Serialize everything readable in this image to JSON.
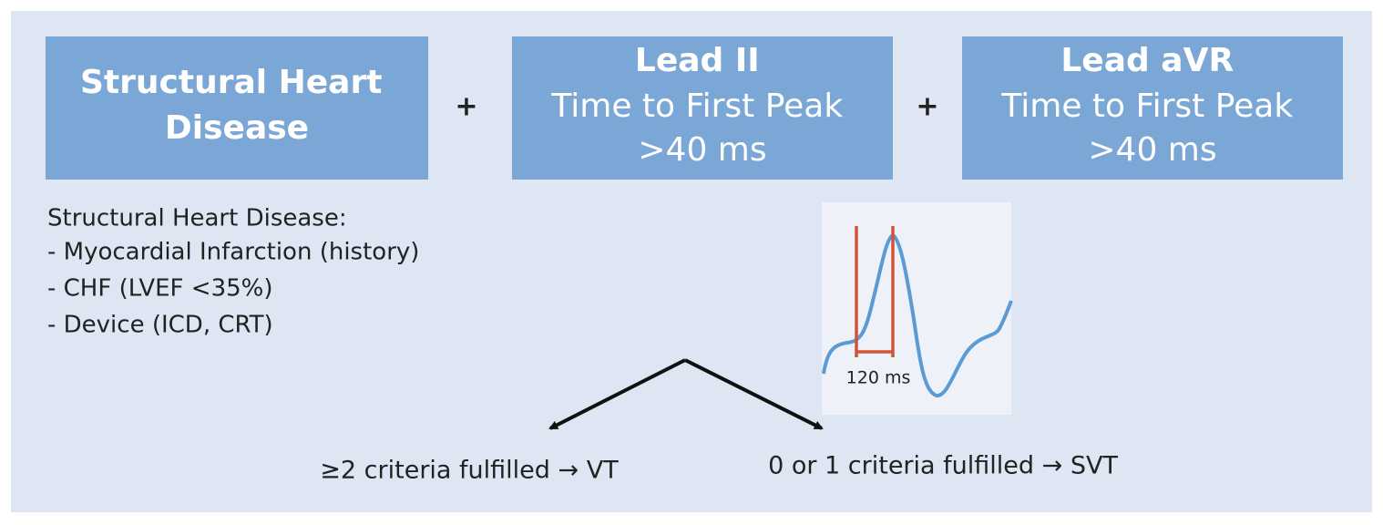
{
  "boxes": [
    {
      "lines": [
        "Structural Heart",
        "Disease"
      ]
    },
    {
      "lines": [
        "Lead II",
        "Time to First Peak",
        ">40 ms"
      ]
    },
    {
      "lines": [
        "Lead aVR",
        "Time to First Peak",
        ">40 ms"
      ]
    }
  ],
  "operators": [
    "+",
    "+"
  ],
  "definition": {
    "title": "Structural Heart Disease:",
    "items": [
      "- Myocardial Infarction (history)",
      "- CHF (LVEF <35%)",
      "- Device (ICD, CRT)"
    ]
  },
  "ecg_inset": {
    "interval_label": "120 ms"
  },
  "outcomes": [
    "≥2 criteria fulfilled → VT",
    "0 or 1 criteria fulfilled → SVT"
  ]
}
